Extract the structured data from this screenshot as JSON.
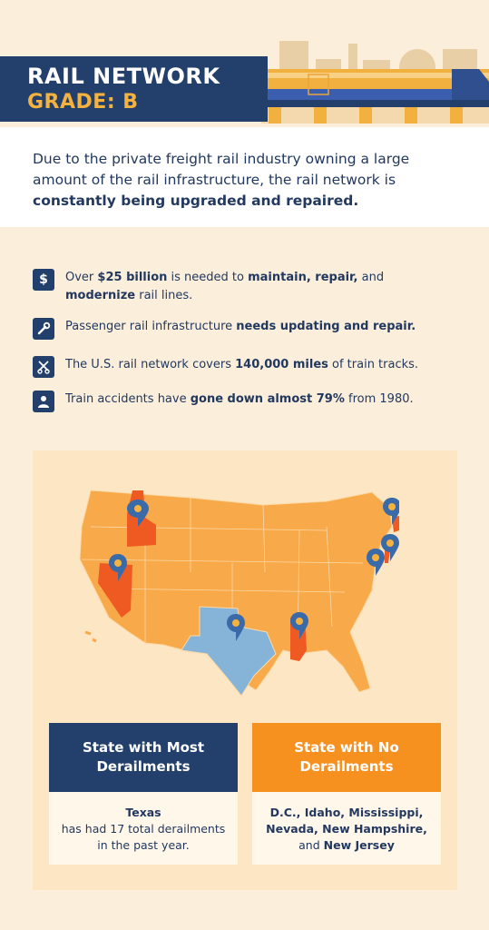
{
  "header": {
    "title": "RAIL NETWORK",
    "grade": "GRADE: B"
  },
  "intro": {
    "text_plain": "Due to the private freight rail industry owning a large amount of the rail infrastructure, the rail network is ",
    "text_bold": "constantly being upgraded and repaired."
  },
  "facts": [
    {
      "icon": "dollar-icon",
      "parts": [
        "Over ",
        "$25 billion",
        " is needed to ",
        "maintain, repair,",
        " and ",
        "modernize",
        " rail lines."
      ]
    },
    {
      "icon": "wrench-icon",
      "parts": [
        "Passenger rail infrastructure ",
        "needs updating and repair.",
        "",
        "",
        "",
        "",
        ""
      ]
    },
    {
      "icon": "tracks-icon",
      "parts": [
        "The U.S. rail network covers ",
        "140,000 miles",
        " of train tracks.",
        "",
        "",
        "",
        ""
      ]
    },
    {
      "icon": "person-icon",
      "parts": [
        "Train accidents have ",
        "gone down almost 79%",
        " from 1980.",
        "",
        "",
        "",
        ""
      ]
    }
  ],
  "cards": {
    "most": {
      "heading": "State with Most Derailments",
      "state": "Texas",
      "detail": "has had 17 total derailments in the past year."
    },
    "none": {
      "heading": "State with No Derailments",
      "states_bold_1": "D.C., Idaho, Mississippi, Nevada, New Hampshire,",
      "joiner": "and ",
      "states_bold_2": "New Jersey"
    }
  },
  "colors": {
    "navy": "#22406b",
    "orange": "#f6901e",
    "gold": "#f6b23f",
    "map_fill": "#f8a94a",
    "highlight": "#ef5a22",
    "texas": "#86b3d8",
    "panel": "#fde6c3"
  }
}
